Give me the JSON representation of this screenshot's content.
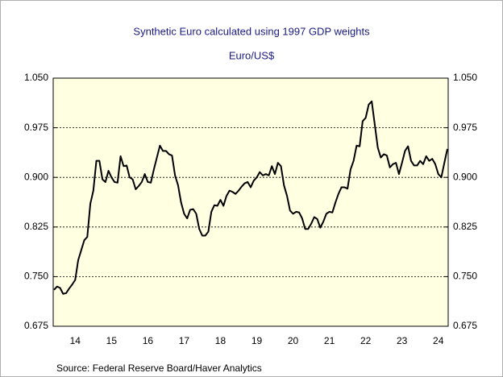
{
  "chart_data": {
    "type": "line",
    "title": "Synthetic Euro calculated using 1997 GDP weights",
    "subtitle": "Euro/US$",
    "source": "Source:  Federal Reserve Board/Haver Analytics",
    "color": "#000000",
    "grid": true,
    "ylim": [
      0.675,
      1.05
    ],
    "yticks": [
      0.675,
      {
        "value": 0.75,
        "label": "0.750"
      },
      0.825,
      {
        "value": 0.9,
        "label": "0.900"
      },
      0.975,
      {
        "value": 1.05,
        "label": "1.050"
      }
    ],
    "categories": [
      null,
      null,
      null,
      null,
      null,
      null,
      null,
      "14",
      null,
      null,
      null,
      null,
      null,
      null,
      null,
      null,
      null,
      null,
      null,
      "15",
      null,
      null,
      null,
      null,
      null,
      null,
      null,
      null,
      null,
      null,
      null,
      "16",
      null,
      null,
      null,
      null,
      null,
      null,
      null,
      null,
      null,
      null,
      null,
      "17",
      null,
      null,
      null,
      null,
      null,
      null,
      null,
      null,
      null,
      null,
      null,
      "18",
      null,
      null,
      null,
      null,
      null,
      null,
      null,
      null,
      null,
      null,
      null,
      "19",
      null,
      null,
      null,
      null,
      null,
      null,
      null,
      null,
      null,
      null,
      null,
      "20",
      null,
      null,
      null,
      null,
      null,
      null,
      null,
      null,
      null,
      null,
      null,
      "21",
      null,
      null,
      null,
      null,
      null,
      null,
      null,
      null,
      null,
      null,
      null,
      "22",
      null,
      null,
      null,
      null,
      null,
      null,
      null,
      null,
      null,
      null,
      null,
      "23",
      null,
      null,
      null,
      null,
      null,
      null,
      null,
      null,
      null,
      null,
      null,
      "24",
      null,
      null,
      null
    ],
    "values": [
      0.73,
      0.735,
      0.733,
      0.724,
      0.725,
      0.732,
      0.738,
      0.745,
      0.775,
      0.79,
      0.805,
      0.81,
      0.86,
      0.88,
      0.925,
      0.925,
      0.897,
      0.893,
      0.91,
      0.9,
      0.893,
      0.892,
      0.932,
      0.917,
      0.918,
      0.9,
      0.897,
      0.882,
      0.887,
      0.893,
      0.905,
      0.893,
      0.892,
      0.912,
      0.93,
      0.948,
      0.94,
      0.94,
      0.935,
      0.933,
      0.903,
      0.888,
      0.862,
      0.845,
      0.838,
      0.851,
      0.852,
      0.845,
      0.822,
      0.812,
      0.812,
      0.818,
      0.848,
      0.858,
      0.857,
      0.866,
      0.857,
      0.872,
      0.88,
      0.878,
      0.875,
      0.88,
      0.886,
      0.891,
      0.893,
      0.885,
      0.895,
      0.9,
      0.908,
      0.903,
      0.905,
      0.903,
      0.917,
      0.905,
      0.922,
      0.917,
      0.888,
      0.872,
      0.85,
      0.845,
      0.848,
      0.847,
      0.838,
      0.822,
      0.822,
      0.83,
      0.84,
      0.837,
      0.824,
      0.833,
      0.845,
      0.848,
      0.847,
      0.862,
      0.875,
      0.885,
      0.885,
      0.883,
      0.912,
      0.925,
      0.948,
      0.947,
      0.985,
      0.99,
      1.01,
      1.015,
      0.98,
      0.945,
      0.93,
      0.935,
      0.933,
      0.915,
      0.92,
      0.922,
      0.905,
      0.922,
      0.94,
      0.947,
      0.925,
      0.918,
      0.918,
      0.925,
      0.92,
      0.932,
      0.925,
      0.928,
      0.92,
      0.905,
      0.9,
      0.922,
      0.943
    ]
  }
}
